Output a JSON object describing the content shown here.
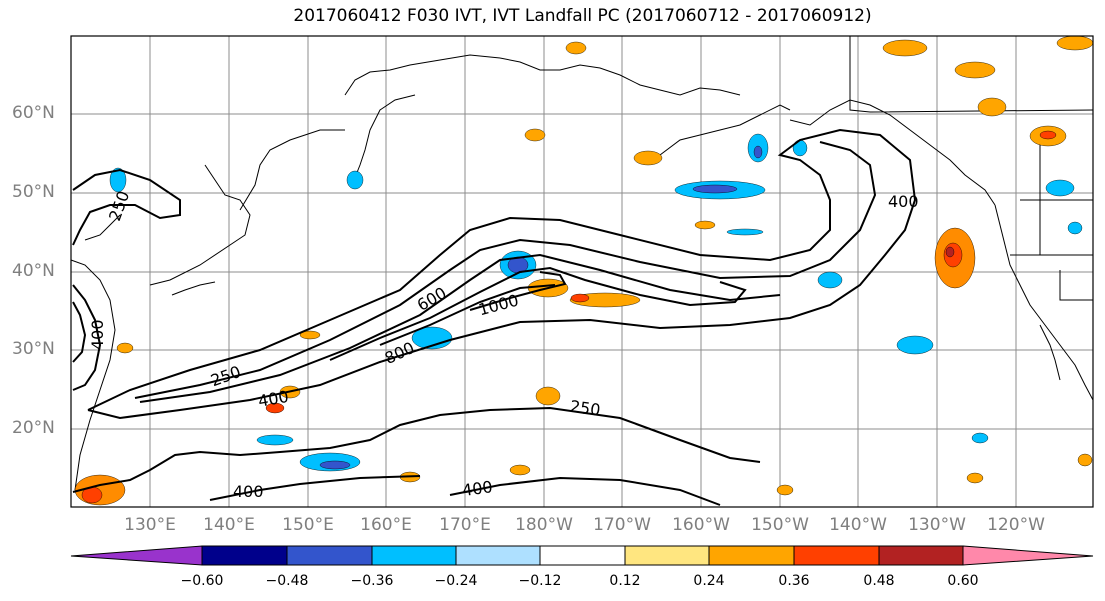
{
  "title": "2017060412 F030 IVT, IVT Landfall PC (2017060712 - 2017060912)",
  "lat_labels": [
    "60°N",
    "50°N",
    "40°N",
    "30°N",
    "20°N"
  ],
  "lon_labels": [
    "130°E",
    "140°E",
    "150°E",
    "160°E",
    "170°E",
    "180°W",
    "170°W",
    "160°W",
    "150°W",
    "140°W",
    "130°W",
    "120°W"
  ],
  "contour_labels": [
    "250",
    "400",
    "600",
    "800",
    "1000",
    "250",
    "400",
    "400",
    "400",
    "250",
    "400"
  ],
  "colorbar": {
    "ticks": [
      "−0.60",
      "−0.48",
      "−0.36",
      "−0.24",
      "−0.12",
      "0.12",
      "0.24",
      "0.36",
      "0.48",
      "0.60"
    ],
    "colors": [
      "#9933cc",
      "#00008b",
      "#3355cc",
      "#00bfff",
      "#aee0ff",
      "#ffffff",
      "#ffe680",
      "#ffa500",
      "#ff4000",
      "#b22222",
      "#ff88aa"
    ]
  }
}
